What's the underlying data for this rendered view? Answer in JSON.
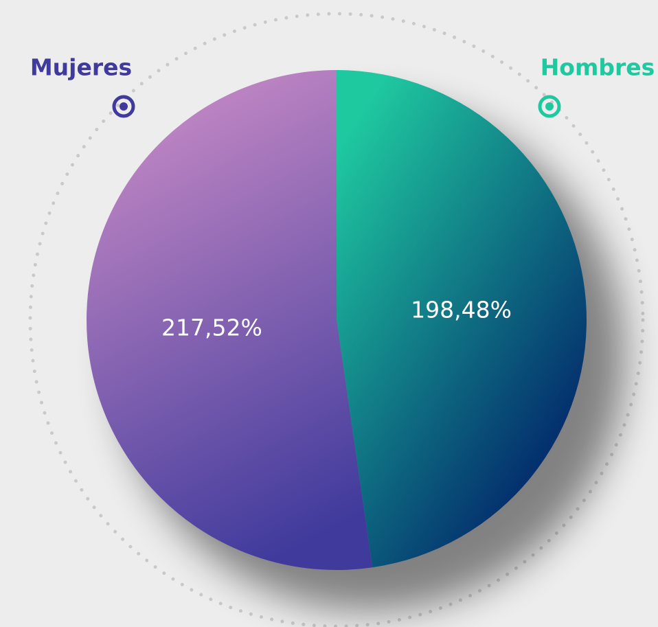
{
  "chart_data": {
    "type": "pie",
    "categories": [
      "Hombres",
      "Mujeres"
    ],
    "values": [
      198.48,
      217.52
    ],
    "value_labels": [
      "198,48%",
      "217,52%"
    ],
    "colors": [
      "#1fc9a0",
      "#3f3a9c"
    ]
  }
}
